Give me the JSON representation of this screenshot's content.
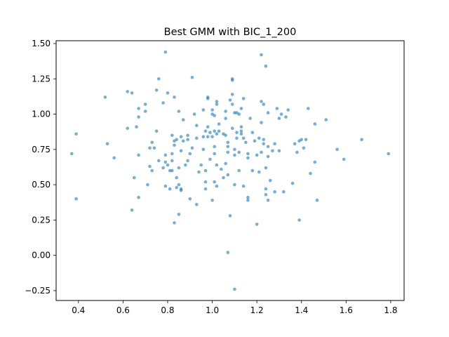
{
  "chart_data": {
    "type": "scatter",
    "title": "Best GMM with BIC_1_200",
    "xlabel": "",
    "ylabel": "",
    "xlim": [
      0.3,
      1.86
    ],
    "ylim": [
      -0.32,
      1.52
    ],
    "x_ticks": [
      0.4,
      0.6,
      0.8,
      1.0,
      1.2,
      1.4,
      1.6,
      1.8
    ],
    "x_tick_labels": [
      "0.4",
      "0.6",
      "0.8",
      "1.0",
      "1.2",
      "1.4",
      "1.6",
      "1.8"
    ],
    "y_ticks": [
      -0.25,
      0.0,
      0.25,
      0.5,
      0.75,
      1.0,
      1.25,
      1.5
    ],
    "y_tick_labels": [
      "−0.25",
      "0.00",
      "0.25",
      "0.50",
      "0.75",
      "1.00",
      "1.25",
      "1.50"
    ],
    "grid": false,
    "point_color": "#1f77b4",
    "points": [
      [
        0.37,
        0.72
      ],
      [
        0.39,
        0.86
      ],
      [
        0.39,
        0.4
      ],
      [
        0.52,
        1.12
      ],
      [
        0.53,
        0.79
      ],
      [
        0.56,
        0.69
      ],
      [
        0.62,
        1.16
      ],
      [
        0.62,
        0.9
      ],
      [
        0.64,
        1.15
      ],
      [
        0.64,
        0.32
      ],
      [
        0.65,
        0.55
      ],
      [
        0.66,
        0.91
      ],
      [
        0.67,
        1.04
      ],
      [
        0.67,
        0.98
      ],
      [
        0.67,
        0.71
      ],
      [
        0.67,
        0.41
      ],
      [
        0.7,
        1.07
      ],
      [
        0.7,
        1.02
      ],
      [
        0.71,
        0.5
      ],
      [
        0.72,
        0.76
      ],
      [
        0.72,
        0.63
      ],
      [
        0.73,
        0.6
      ],
      [
        0.73,
        0.8
      ],
      [
        0.74,
        0.76
      ],
      [
        0.75,
        1.17
      ],
      [
        0.75,
        0.88
      ],
      [
        0.76,
        1.25
      ],
      [
        0.76,
        0.67
      ],
      [
        0.78,
        0.62
      ],
      [
        0.78,
        1.08
      ],
      [
        0.79,
        1.44
      ],
      [
        0.79,
        0.71
      ],
      [
        0.79,
        0.66
      ],
      [
        0.79,
        0.49
      ],
      [
        0.8,
        1.15
      ],
      [
        0.8,
        0.64
      ],
      [
        0.81,
        0.6
      ],
      [
        0.81,
        0.47
      ],
      [
        0.82,
        0.6
      ],
      [
        0.82,
        0.85
      ],
      [
        0.82,
        0.72
      ],
      [
        0.82,
        0.67
      ],
      [
        0.83,
        1.12
      ],
      [
        0.83,
        0.81
      ],
      [
        0.83,
        0.78
      ],
      [
        0.83,
        0.23
      ],
      [
        0.84,
        0.55
      ],
      [
        0.84,
        0.48
      ],
      [
        0.84,
        0.82
      ],
      [
        0.85,
        0.5
      ],
      [
        0.85,
        1.02
      ],
      [
        0.85,
        0.62
      ],
      [
        0.85,
        0.29
      ],
      [
        0.86,
        0.84
      ],
      [
        0.86,
        0.74
      ],
      [
        0.86,
        0.47
      ],
      [
        0.86,
        0.46
      ],
      [
        0.87,
        0.96
      ],
      [
        0.87,
        0.81
      ],
      [
        0.88,
        0.64
      ],
      [
        0.89,
        0.67
      ],
      [
        0.89,
        0.85
      ],
      [
        0.89,
        0.82
      ],
      [
        0.9,
        0.72
      ],
      [
        0.9,
        0.4
      ],
      [
        0.91,
        0.76
      ],
      [
        0.91,
        1.26
      ],
      [
        0.92,
        1.0
      ],
      [
        0.93,
        0.36
      ],
      [
        0.93,
        0.92
      ],
      [
        0.93,
        0.83
      ],
      [
        0.94,
        0.59
      ],
      [
        0.95,
        0.64
      ],
      [
        0.96,
        1.03
      ],
      [
        0.96,
        0.84
      ],
      [
        0.96,
        0.75
      ],
      [
        0.97,
        0.88
      ],
      [
        0.97,
        0.6
      ],
      [
        0.97,
        0.52
      ],
      [
        0.97,
        0.47
      ],
      [
        0.98,
        1.12
      ],
      [
        0.98,
        1.11
      ],
      [
        0.98,
        0.91
      ],
      [
        0.98,
        0.84
      ],
      [
        0.99,
        0.68
      ],
      [
        0.99,
        0.87
      ],
      [
        1.0,
        1.03
      ],
      [
        1.0,
        1.0
      ],
      [
        1.0,
        0.84
      ],
      [
        1.0,
        0.39
      ],
      [
        1.01,
        0.77
      ],
      [
        1.01,
        0.72
      ],
      [
        1.01,
        0.88
      ],
      [
        1.01,
        0.52
      ],
      [
        1.01,
        0.99
      ],
      [
        1.02,
        1.09
      ],
      [
        1.02,
        1.07
      ],
      [
        1.02,
        0.86
      ],
      [
        1.02,
        0.64
      ],
      [
        1.02,
        0.49
      ],
      [
        1.03,
        0.93
      ],
      [
        1.03,
        0.88
      ],
      [
        1.04,
        0.61
      ],
      [
        1.05,
        0.86
      ],
      [
        1.05,
        0.55
      ],
      [
        1.06,
        0.85
      ],
      [
        1.06,
        1.02
      ],
      [
        1.06,
        0.97
      ],
      [
        1.06,
        0.65
      ],
      [
        1.07,
        0.77
      ],
      [
        1.07,
        0.73
      ],
      [
        1.07,
        0.8
      ],
      [
        1.07,
        0.57
      ],
      [
        1.07,
        0.02
      ],
      [
        1.08,
        1.1
      ],
      [
        1.08,
        0.28
      ],
      [
        1.09,
        1.25
      ],
      [
        1.09,
        1.24
      ],
      [
        1.09,
        1.14
      ],
      [
        1.09,
        1.07
      ],
      [
        1.09,
        0.9
      ],
      [
        1.1,
        1.01
      ],
      [
        1.1,
        0.75
      ],
      [
        1.1,
        0.71
      ],
      [
        1.1,
        0.5
      ],
      [
        1.1,
        -0.24
      ],
      [
        1.11,
        1.01
      ],
      [
        1.11,
        0.87
      ],
      [
        1.11,
        0.83
      ],
      [
        1.12,
        1.0
      ],
      [
        1.12,
        0.6
      ],
      [
        1.12,
        0.73
      ],
      [
        1.13,
        1.04
      ],
      [
        1.13,
        0.88
      ],
      [
        1.13,
        0.86
      ],
      [
        1.13,
        0.91
      ],
      [
        1.14,
        1.11
      ],
      [
        1.14,
        0.49
      ],
      [
        1.14,
        0.83
      ],
      [
        1.15,
        0.8
      ],
      [
        1.16,
        0.72
      ],
      [
        1.16,
        0.69
      ],
      [
        1.16,
        0.41
      ],
      [
        1.16,
        0.39
      ],
      [
        1.17,
        0.97
      ],
      [
        1.18,
        0.87
      ],
      [
        1.18,
        0.6
      ],
      [
        1.19,
        0.81
      ],
      [
        1.2,
        0.71
      ],
      [
        1.2,
        0.22
      ],
      [
        1.21,
        0.83
      ],
      [
        1.21,
        0.59
      ],
      [
        1.22,
        1.42
      ],
      [
        1.22,
        1.09
      ],
      [
        1.22,
        0.94
      ],
      [
        1.22,
        0.73
      ],
      [
        1.23,
        1.07
      ],
      [
        1.23,
        0.82
      ],
      [
        1.23,
        0.79
      ],
      [
        1.24,
        1.34
      ],
      [
        1.24,
        0.62
      ],
      [
        1.24,
        0.47
      ],
      [
        1.24,
        0.43
      ],
      [
        1.25,
        1.01
      ],
      [
        1.25,
        0.77
      ],
      [
        1.25,
        0.7
      ],
      [
        1.25,
        0.39
      ],
      [
        1.26,
        0.53
      ],
      [
        1.27,
        0.74
      ],
      [
        1.28,
        0.79
      ],
      [
        1.28,
        0.45
      ],
      [
        1.29,
        1.04
      ],
      [
        1.3,
        0.97
      ],
      [
        1.3,
        0.74
      ],
      [
        1.31,
        1.0
      ],
      [
        1.32,
        0.45
      ],
      [
        1.33,
        0.98
      ],
      [
        1.34,
        1.03
      ],
      [
        1.36,
        0.51
      ],
      [
        1.37,
        0.79
      ],
      [
        1.38,
        0.73
      ],
      [
        1.39,
        0.81
      ],
      [
        1.39,
        0.25
      ],
      [
        1.4,
        0.82
      ],
      [
        1.41,
        0.76
      ],
      [
        1.42,
        0.82
      ],
      [
        1.43,
        1.04
      ],
      [
        1.44,
        0.58
      ],
      [
        1.46,
        0.93
      ],
      [
        1.46,
        0.66
      ],
      [
        1.47,
        0.39
      ],
      [
        1.51,
        0.96
      ],
      [
        1.56,
        0.75
      ],
      [
        1.59,
        0.68
      ],
      [
        1.67,
        0.82
      ],
      [
        1.79,
        0.72
      ]
    ]
  }
}
